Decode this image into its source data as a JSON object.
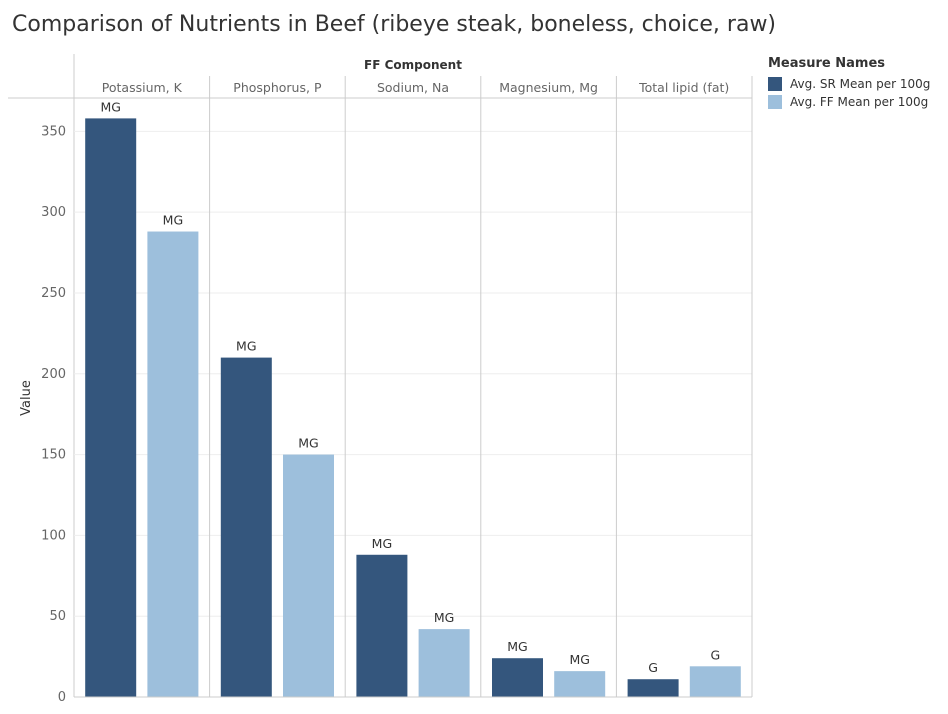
{
  "header": {
    "title": "Comparison of Nutrients in Beef (ribeye steak, boneless, choice, raw)"
  },
  "colors": {
    "sr": "#34567d",
    "ff": "#9dbfdc",
    "grid": "#eeeeee",
    "divider": "#cccccc"
  },
  "legend": {
    "title": "Measure Names",
    "items": [
      {
        "label": "Avg. SR Mean per 100g",
        "color": "#34567d"
      },
      {
        "label": "Avg. FF Mean per 100g",
        "color": "#9dbfdc"
      }
    ]
  },
  "chart_data": {
    "type": "bar",
    "column_header": "FF Component",
    "ylabel": "Value",
    "ylim": [
      0,
      370
    ],
    "yticks": [
      0,
      50,
      100,
      150,
      200,
      250,
      300,
      350
    ],
    "categories": [
      "Potassium, K",
      "Phosphorus, P",
      "Sodium, Na",
      "Magnesium, Mg",
      "Total lipid (fat)"
    ],
    "series": [
      {
        "name": "Avg. SR Mean per 100g",
        "values": [
          358,
          210,
          88,
          24,
          11
        ],
        "labels": [
          "MG",
          "MG",
          "MG",
          "MG",
          "G"
        ]
      },
      {
        "name": "Avg. FF Mean per 100g",
        "values": [
          288,
          150,
          42,
          16,
          19
        ],
        "labels": [
          "MG",
          "MG",
          "MG",
          "MG",
          "G"
        ]
      }
    ],
    "grid": true,
    "legend_position": "right"
  }
}
